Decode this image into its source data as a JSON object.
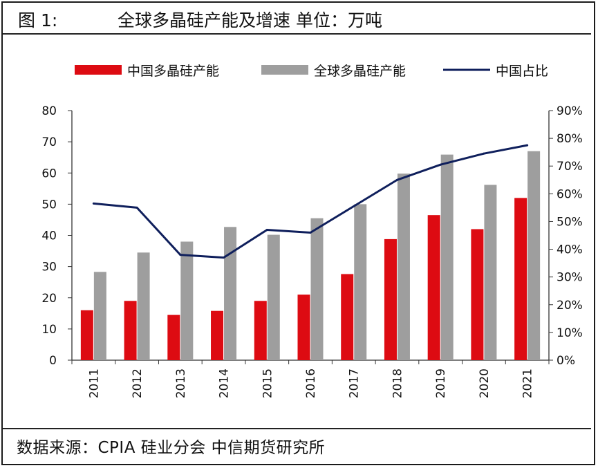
{
  "header": {
    "figure_label": "图 1:",
    "title": "全球多晶硅产能及增速 单位：万吨"
  },
  "footer": {
    "source": "数据来源：CPIA 硅业分会 中信期货研究所"
  },
  "colors": {
    "china_bar": "#dd0b12",
    "global_bar": "#9e9e9e",
    "share_line": "#0f1f5c"
  },
  "chart_data": {
    "type": "bar",
    "categories": [
      "2011",
      "2012",
      "2013",
      "2014",
      "2015",
      "2016",
      "2017",
      "2018",
      "2019",
      "2020",
      "2021"
    ],
    "series": [
      {
        "name": "中国多晶硅产能",
        "type": "bar",
        "axis": "left",
        "values": [
          16,
          19,
          14.5,
          15.8,
          19,
          21,
          27.6,
          38.8,
          46.5,
          42,
          52
        ]
      },
      {
        "name": "全球多晶硅产能",
        "type": "bar",
        "axis": "left",
        "values": [
          28.3,
          34.5,
          38,
          42.7,
          40.2,
          45.5,
          50,
          59.8,
          65.9,
          56.2,
          67
        ]
      },
      {
        "name": "中国占比",
        "type": "line",
        "axis": "right",
        "values": [
          0.565,
          0.55,
          0.38,
          0.37,
          0.47,
          0.46,
          0.555,
          0.65,
          0.705,
          0.745,
          0.775
        ]
      }
    ],
    "y_left": {
      "min": 0,
      "max": 80,
      "ticks": [
        "0",
        "10",
        "20",
        "30",
        "40",
        "50",
        "60",
        "70",
        "80"
      ]
    },
    "y_right": {
      "min": 0,
      "max": 0.9,
      "ticks": [
        "0%",
        "10%",
        "20%",
        "30%",
        "40%",
        "50%",
        "60%",
        "70%",
        "80%",
        "90%"
      ]
    },
    "legend_position": "top",
    "grid": false
  }
}
